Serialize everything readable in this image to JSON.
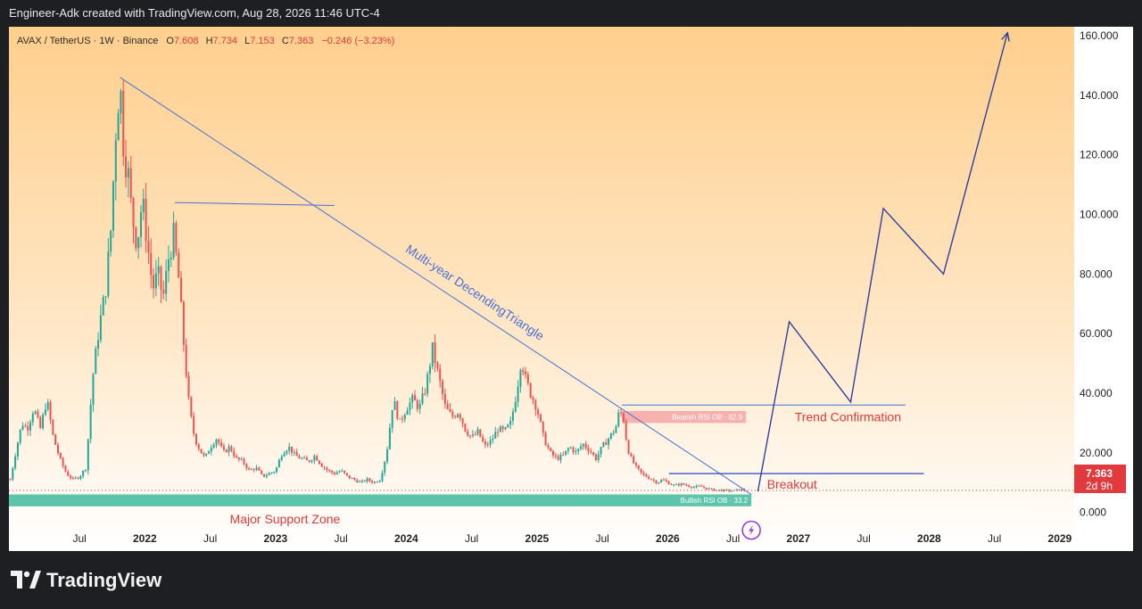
{
  "watermark": "Engineer-Adk created with TradingView.com, Aug 28, 2026 11:46 UTC-4",
  "brand": "TradingView",
  "header": {
    "symbol": "AVAX / TetherUS · 1W · Binance",
    "o_label": "O",
    "o_value": "7.608",
    "h_label": "H",
    "h_value": "7.734",
    "l_label": "L",
    "l_value": "7.153",
    "c_label": "C",
    "c_value": "7.363",
    "change": "−0.246 (−3.23%)"
  },
  "price_label": {
    "value": "7.363",
    "countdown": "2d 9h"
  },
  "colors": {
    "bull": "#26a69a",
    "bear": "#ef5350",
    "drawing": "#2f3fa0",
    "trendline": "#4a6fd6",
    "annotation": "#e03a3a",
    "support": "#4dbfa5"
  },
  "chart_data": {
    "type": "candlestick",
    "y_axis": {
      "ticks": [
        "160.000",
        "140.000",
        "120.000",
        "100.000",
        "80.000",
        "60.000",
        "40.000",
        "20.000",
        "0.000"
      ],
      "tick_values": [
        160,
        140,
        120,
        100,
        80,
        60,
        40,
        20,
        0
      ],
      "range": [
        -13,
        163
      ]
    },
    "x_axis": {
      "ticks": [
        "Jul",
        "2022",
        "Jul",
        "2023",
        "Jul",
        "2024",
        "Jul",
        "2025",
        "Jul",
        "2026",
        "Jul",
        "2027",
        "Jul",
        "2028",
        "Jul",
        "2029"
      ],
      "tick_dates": [
        2021.5,
        2022.0,
        2022.5,
        2023.0,
        2023.5,
        2024.0,
        2024.5,
        2025.0,
        2025.5,
        2026.0,
        2026.5,
        2027.0,
        2027.5,
        2028.0,
        2028.5,
        2029.0
      ],
      "year_ticks": [
        "2022",
        "2023",
        "2024",
        "2025",
        "2026",
        "2027",
        "2028",
        "2029"
      ],
      "range": [
        2020.96,
        2029.11
      ]
    },
    "price_path": [
      [
        2020.97,
        11
      ],
      [
        2021.02,
        22
      ],
      [
        2021.06,
        30
      ],
      [
        2021.1,
        28
      ],
      [
        2021.15,
        35
      ],
      [
        2021.2,
        28
      ],
      [
        2021.25,
        38
      ],
      [
        2021.3,
        25
      ],
      [
        2021.35,
        18
      ],
      [
        2021.4,
        13
      ],
      [
        2021.45,
        11
      ],
      [
        2021.5,
        12
      ],
      [
        2021.55,
        15
      ],
      [
        2021.6,
        45
      ],
      [
        2021.65,
        62
      ],
      [
        2021.7,
        75
      ],
      [
        2021.74,
        95
      ],
      [
        2021.78,
        130
      ],
      [
        2021.81,
        145
      ],
      [
        2021.84,
        120
      ],
      [
        2021.87,
        115
      ],
      [
        2021.9,
        100
      ],
      [
        2021.94,
        90
      ],
      [
        2021.98,
        105
      ],
      [
        2022.02,
        90
      ],
      [
        2022.06,
        75
      ],
      [
        2022.1,
        80
      ],
      [
        2022.14,
        72
      ],
      [
        2022.18,
        85
      ],
      [
        2022.22,
        93
      ],
      [
        2022.26,
        78
      ],
      [
        2022.3,
        55
      ],
      [
        2022.34,
        35
      ],
      [
        2022.38,
        25
      ],
      [
        2022.42,
        21
      ],
      [
        2022.46,
        18
      ],
      [
        2022.5,
        22
      ],
      [
        2022.55,
        25
      ],
      [
        2022.6,
        20
      ],
      [
        2022.65,
        22
      ],
      [
        2022.7,
        18
      ],
      [
        2022.75,
        17
      ],
      [
        2022.8,
        14
      ],
      [
        2022.85,
        15
      ],
      [
        2022.9,
        12
      ],
      [
        2022.95,
        13
      ],
      [
        2023.0,
        14
      ],
      [
        2023.05,
        20
      ],
      [
        2023.1,
        22
      ],
      [
        2023.15,
        19
      ],
      [
        2023.2,
        18
      ],
      [
        2023.25,
        17
      ],
      [
        2023.3,
        19
      ],
      [
        2023.35,
        16
      ],
      [
        2023.4,
        14
      ],
      [
        2023.45,
        13
      ],
      [
        2023.5,
        14
      ],
      [
        2023.55,
        12
      ],
      [
        2023.6,
        11
      ],
      [
        2023.65,
        10
      ],
      [
        2023.7,
        11
      ],
      [
        2023.75,
        10
      ],
      [
        2023.8,
        11
      ],
      [
        2023.85,
        20
      ],
      [
        2023.9,
        38
      ],
      [
        2023.95,
        30
      ],
      [
        2024.0,
        35
      ],
      [
        2024.05,
        38
      ],
      [
        2024.1,
        35
      ],
      [
        2024.15,
        42
      ],
      [
        2024.2,
        55
      ],
      [
        2024.25,
        45
      ],
      [
        2024.3,
        35
      ],
      [
        2024.35,
        32
      ],
      [
        2024.4,
        34
      ],
      [
        2024.45,
        28
      ],
      [
        2024.5,
        25
      ],
      [
        2024.55,
        27
      ],
      [
        2024.6,
        22
      ],
      [
        2024.65,
        24
      ],
      [
        2024.7,
        28
      ],
      [
        2024.75,
        27
      ],
      [
        2024.8,
        30
      ],
      [
        2024.85,
        42
      ],
      [
        2024.88,
        52
      ],
      [
        2024.91,
        45
      ],
      [
        2024.95,
        40
      ],
      [
        2025.0,
        35
      ],
      [
        2025.05,
        25
      ],
      [
        2025.1,
        20
      ],
      [
        2025.15,
        18
      ],
      [
        2025.2,
        19
      ],
      [
        2025.25,
        22
      ],
      [
        2025.3,
        20
      ],
      [
        2025.35,
        23
      ],
      [
        2025.4,
        21
      ],
      [
        2025.45,
        18
      ],
      [
        2025.5,
        22
      ],
      [
        2025.55,
        25
      ],
      [
        2025.6,
        28
      ],
      [
        2025.63,
        34
      ],
      [
        2025.66,
        32
      ],
      [
        2025.69,
        22
      ],
      [
        2025.72,
        18
      ],
      [
        2025.76,
        15
      ],
      [
        2025.8,
        13
      ],
      [
        2025.84,
        12
      ],
      [
        2025.88,
        11
      ],
      [
        2025.92,
        10
      ],
      [
        2025.96,
        11
      ],
      [
        2026.0,
        10
      ],
      [
        2026.05,
        9
      ],
      [
        2026.1,
        9.5
      ],
      [
        2026.15,
        9
      ],
      [
        2026.2,
        8.5
      ],
      [
        2026.25,
        8.7
      ],
      [
        2026.3,
        8
      ],
      [
        2026.35,
        7.5
      ],
      [
        2026.4,
        7.4
      ],
      [
        2026.45,
        7.3
      ],
      [
        2026.5,
        7.2
      ],
      [
        2026.55,
        7.6
      ],
      [
        2026.6,
        7.363
      ]
    ],
    "drawings": {
      "trendline": {
        "label": "Multi-year DecendingTriangle",
        "from": [
          2021.81,
          146
        ],
        "to": [
          2026.64,
          6
        ]
      },
      "horizontal_level": {
        "from": [
          2022.23,
          104
        ],
        "to": [
          2023.45,
          103
        ]
      },
      "bearish_ob": {
        "label": "Bearish RSI OB · 62.9",
        "x": [
          2025.65,
          2026.6
        ],
        "y": [
          30,
          34
        ]
      },
      "bullish_ob": {
        "label": "Bullish RSI OB · 33.2",
        "x": [
          2020.96,
          2026.64
        ],
        "y": [
          2,
          6
        ]
      },
      "support_label": "Major Support Zone",
      "breakout": {
        "label": "Breakout",
        "level": 13,
        "x": [
          2026.01,
          2027.96
        ]
      },
      "trend_confirmation": {
        "label": "Trend Confirmation",
        "level": 36,
        "x": [
          2025.65,
          2027.82
        ]
      },
      "projection": [
        [
          2026.69,
          7
        ],
        [
          2026.93,
          64
        ],
        [
          2027.4,
          37
        ],
        [
          2027.65,
          102
        ],
        [
          2028.11,
          80
        ],
        [
          2028.6,
          161
        ]
      ],
      "price_line": 7.363
    }
  }
}
